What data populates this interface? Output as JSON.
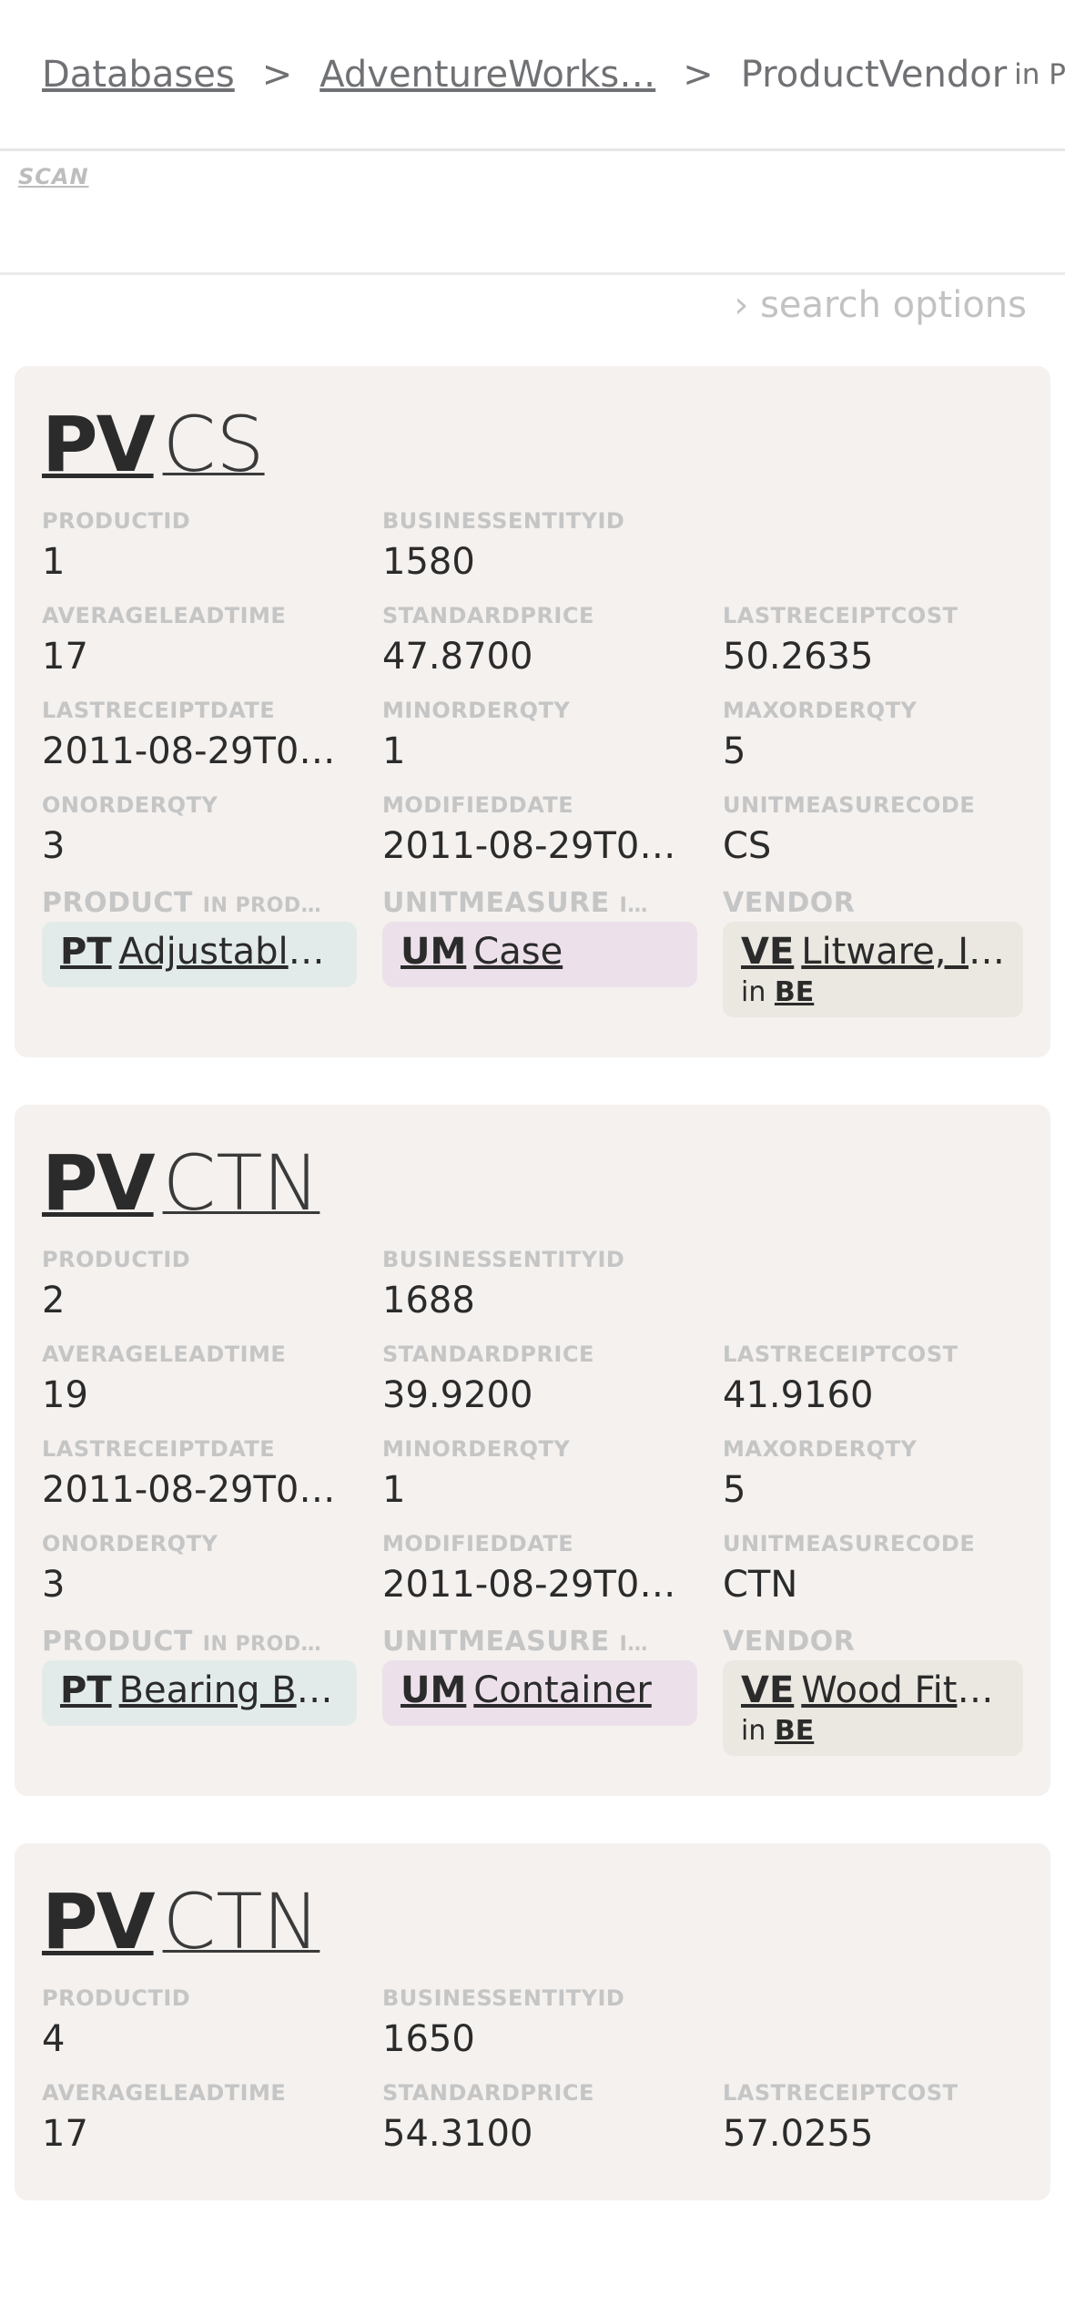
{
  "breadcrumb": {
    "databases": "Databases",
    "database": "AdventureWorks…",
    "separator": ">",
    "table": "ProductVendor",
    "schema_note": "in Pur…"
  },
  "scan": {
    "label": "SCAN"
  },
  "search_options": {
    "label": "› search options"
  },
  "cards": [
    {
      "abbr": "PV",
      "code": "CS",
      "fields": {
        "productid": {
          "label": "PRODUCTID",
          "value": "1"
        },
        "businessentityid": {
          "label": "BUSINESSENTITYID",
          "value": "1580"
        },
        "averageleadtime": {
          "label": "AVERAGELEADTIME",
          "value": "17"
        },
        "standardprice": {
          "label": "STANDARDPRICE",
          "value": "47.8700"
        },
        "lastreceiptcost": {
          "label": "LASTRECEIPTCOST",
          "value": "50.2635"
        },
        "lastreceiptdate": {
          "label": "LASTRECEIPTDATE",
          "value": "2011-08-29T00:…"
        },
        "minorderqty": {
          "label": "MINORDERQTY",
          "value": "1"
        },
        "maxorderqty": {
          "label": "MAXORDERQTY",
          "value": "5"
        },
        "onorderqty": {
          "label": "ONORDERQTY",
          "value": "3"
        },
        "modifieddate": {
          "label": "MODIFIEDDATE",
          "value": "2011-08-29T00:…"
        },
        "unitmeasurecode": {
          "label": "UNITMEASURECODE",
          "value": "CS"
        }
      },
      "refs": {
        "product_label": "PRODUCT",
        "product_in": "IN PROD…",
        "unitmeasure_label": "UNITMEASURE",
        "unitmeasure_in": "I…",
        "vendor_label": "VENDOR",
        "product": {
          "abbr": "PT",
          "text": "Adjustable…"
        },
        "unitmeasure": {
          "abbr": "UM",
          "text": "Case"
        },
        "vendor": {
          "abbr": "VE",
          "text": "Litware, Inc.",
          "in": "in",
          "schema": "BE"
        }
      }
    },
    {
      "abbr": "PV",
      "code": "CTN",
      "fields": {
        "productid": {
          "label": "PRODUCTID",
          "value": "2"
        },
        "businessentityid": {
          "label": "BUSINESSENTITYID",
          "value": "1688"
        },
        "averageleadtime": {
          "label": "AVERAGELEADTIME",
          "value": "19"
        },
        "standardprice": {
          "label": "STANDARDPRICE",
          "value": "39.9200"
        },
        "lastreceiptcost": {
          "label": "LASTRECEIPTCOST",
          "value": "41.9160"
        },
        "lastreceiptdate": {
          "label": "LASTRECEIPTDATE",
          "value": "2011-08-29T00:…"
        },
        "minorderqty": {
          "label": "MINORDERQTY",
          "value": "1"
        },
        "maxorderqty": {
          "label": "MAXORDERQTY",
          "value": "5"
        },
        "onorderqty": {
          "label": "ONORDERQTY",
          "value": "3"
        },
        "modifieddate": {
          "label": "MODIFIEDDATE",
          "value": "2011-08-29T00:…"
        },
        "unitmeasurecode": {
          "label": "UNITMEASURECODE",
          "value": "CTN"
        }
      },
      "refs": {
        "product_label": "PRODUCT",
        "product_in": "IN PROD…",
        "unitmeasure_label": "UNITMEASURE",
        "unitmeasure_in": "I…",
        "vendor_label": "VENDOR",
        "product": {
          "abbr": "PT",
          "text": "Bearing Ball"
        },
        "unitmeasure": {
          "abbr": "UM",
          "text": "Container"
        },
        "vendor": {
          "abbr": "VE",
          "text": "Wood Fitn…",
          "in": "in",
          "schema": "BE"
        }
      }
    },
    {
      "abbr": "PV",
      "code": "CTN",
      "fields": {
        "productid": {
          "label": "PRODUCTID",
          "value": "4"
        },
        "businessentityid": {
          "label": "BUSINESSENTITYID",
          "value": "1650"
        },
        "averageleadtime": {
          "label": "AVERAGELEADTIME",
          "value": "17"
        },
        "standardprice": {
          "label": "STANDARDPRICE",
          "value": "54.3100"
        },
        "lastreceiptcost": {
          "label": "LASTRECEIPTCOST",
          "value": "57.0255"
        }
      }
    }
  ]
}
